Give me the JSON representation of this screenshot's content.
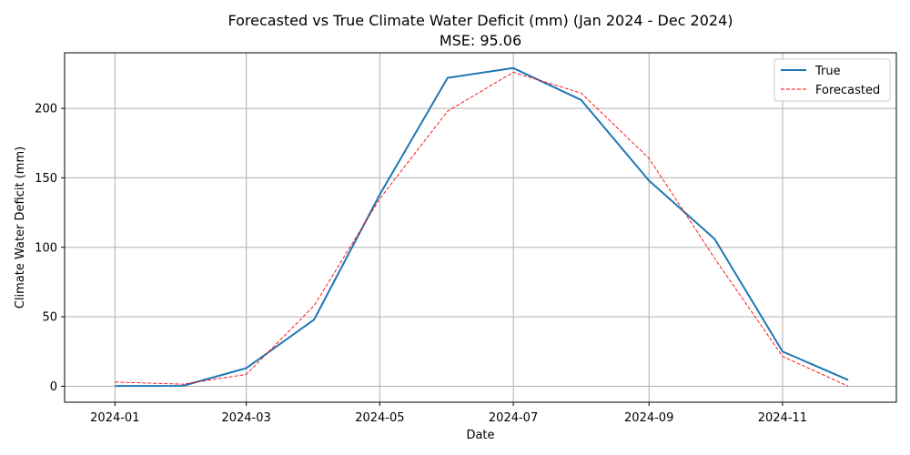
{
  "chart_data": {
    "type": "line",
    "title": "Forecasted vs True Climate Water Deficit (mm) (Jan 2024 - Dec 2024)",
    "subtitle": "MSE: 95.06",
    "xlabel": "Date",
    "ylabel": "Climate Water Deficit (mm)",
    "x": [
      "2024-01",
      "2024-02",
      "2024-03",
      "2024-04",
      "2024-05",
      "2024-06",
      "2024-07",
      "2024-08",
      "2024-09",
      "2024-10",
      "2024-11",
      "2024-12"
    ],
    "x_tick_labels": [
      "2024-01",
      "2024-03",
      "2024-05",
      "2024-07",
      "2024-09",
      "2024-11"
    ],
    "y_ticks": [
      0,
      50,
      100,
      150,
      200
    ],
    "xlim": [
      "2023-12-09",
      "2024-12-23"
    ],
    "ylim": [
      -11.5,
      240
    ],
    "grid": true,
    "legend_position": "top-right",
    "series": [
      {
        "name": "True",
        "color": "#1f77b4",
        "style": "solid",
        "values": [
          0.2,
          0.3,
          13,
          48,
          138,
          222,
          229,
          206,
          148,
          106,
          25,
          4.5
        ]
      },
      {
        "name": "Forecasted",
        "color": "#ff0000",
        "style": "dashed",
        "values": [
          3,
          1.5,
          8.5,
          58,
          135,
          198,
          226,
          211,
          164,
          92,
          21.5,
          0
        ]
      }
    ]
  }
}
